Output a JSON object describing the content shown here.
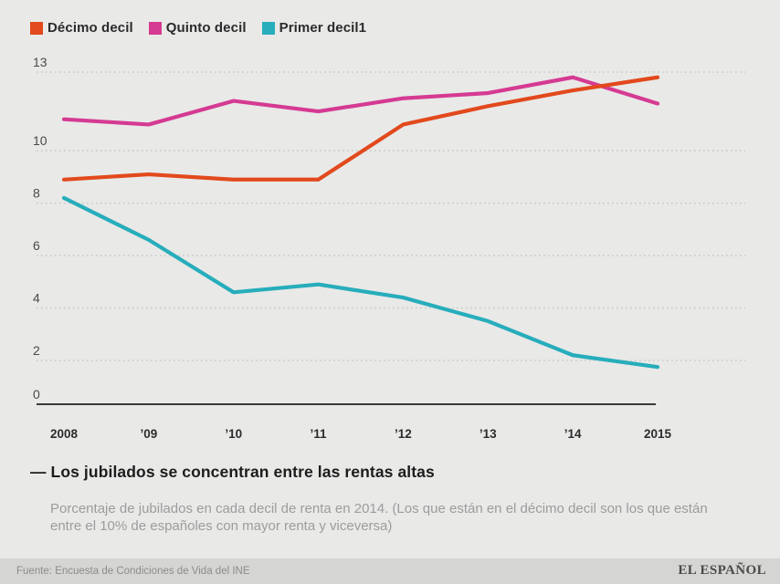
{
  "chart_data": {
    "type": "line",
    "title": "— Los jubilados se concentran entre las rentas altas",
    "subtitle": "Porcentaje de jubilados en cada decil de renta en 2014. (Los que están en el décimo decil son los que están entre el 10% de españoles con mayor renta y viceversa)",
    "source": "Fuente: Encuesta de Condiciones de Vida del INE",
    "categories": [
      "2008",
      "’09",
      "’10",
      "’11",
      "’12",
      "’13",
      "’14",
      "2015"
    ],
    "series": [
      {
        "name": "Décimo decil",
        "color": "#e2491c",
        "values": [
          8.9,
          9.1,
          8.9,
          8.9,
          11.0,
          11.7,
          12.3,
          12.8
        ]
      },
      {
        "name": "Quinto decil",
        "color": "#d53a92",
        "values": [
          11.2,
          11.0,
          11.9,
          11.5,
          12.0,
          12.2,
          12.8,
          11.8
        ]
      },
      {
        "name": "Primer decil1",
        "color": "#27adbb",
        "values": [
          8.2,
          6.6,
          4.6,
          4.9,
          4.4,
          3.5,
          2.2,
          1.7
        ]
      }
    ],
    "yticks": [
      13,
      10,
      8,
      6,
      4,
      2,
      0
    ],
    "ylim": [
      0,
      13
    ],
    "grid": true,
    "gridline_style": "dotted",
    "legend_position": "top-left",
    "xlabel": "",
    "ylabel": ""
  },
  "colors": {
    "background": "#e9e9e8",
    "footer_bar": "#d5d5d3",
    "gridline": "#c9c9c9",
    "axis_line": "#3a3a3a",
    "tick_label": "#4a4a4a",
    "x_label": "#2c2c2c",
    "headline_text": "#1d1d1d",
    "subtitle_text": "#9c9c9c",
    "source_text": "#8c8c8c",
    "brand_text": "#4a4a4a"
  },
  "brand": "EL ESPAÑOL"
}
